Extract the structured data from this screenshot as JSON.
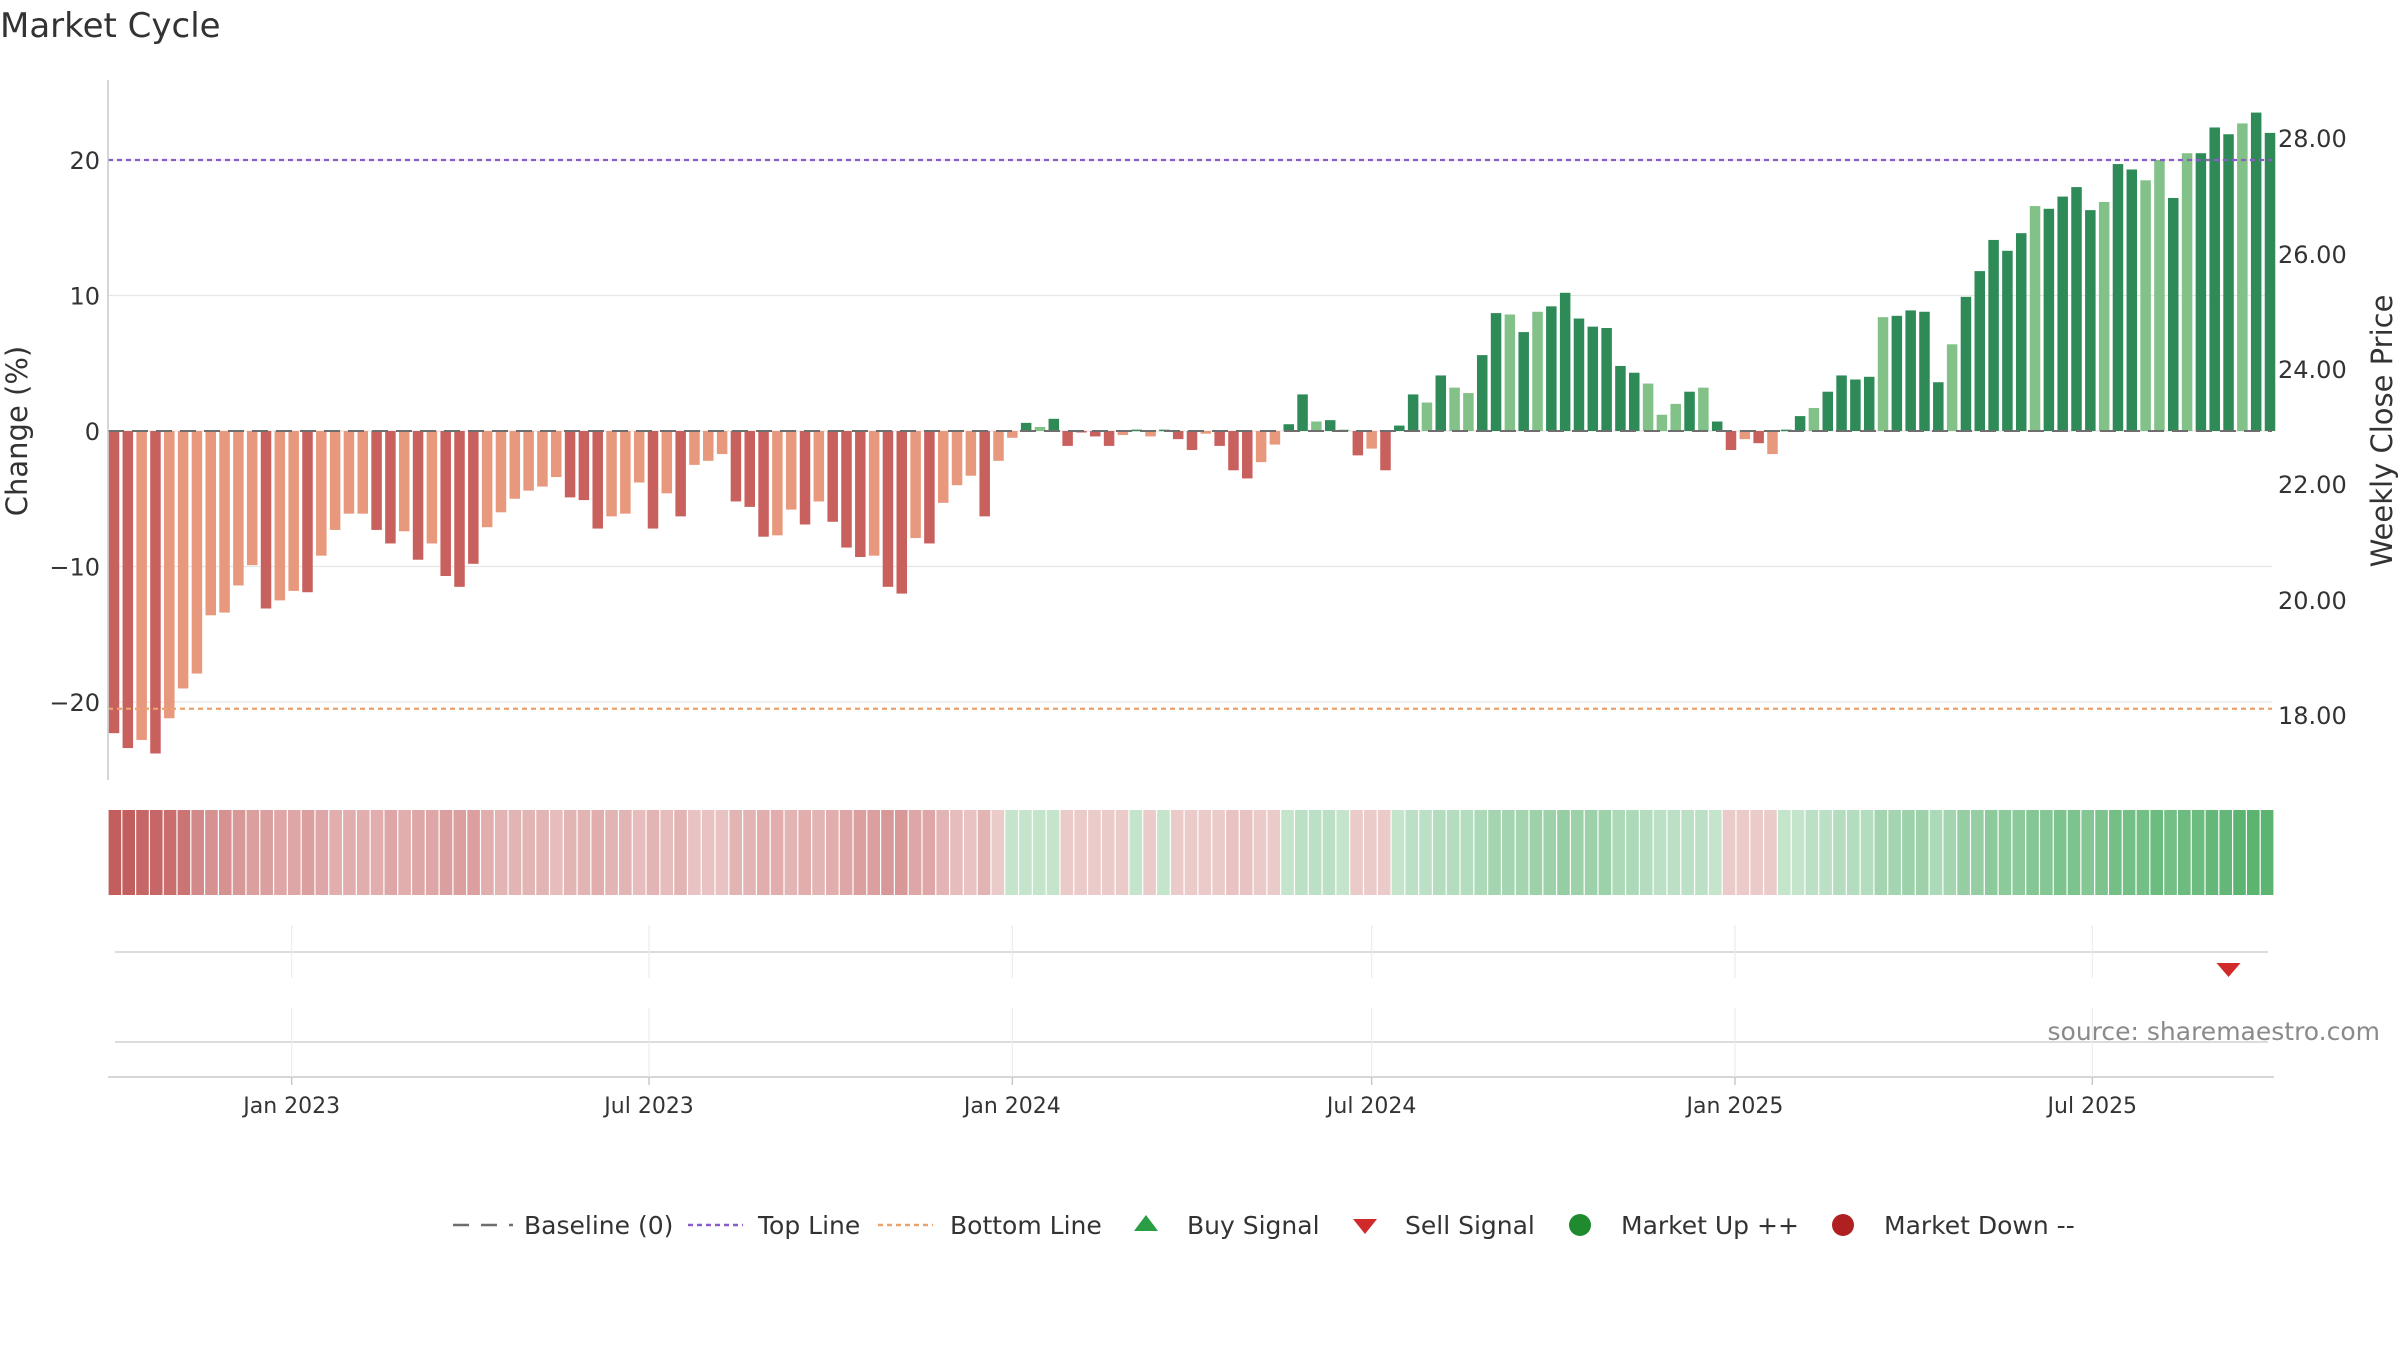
{
  "title": "Market Cycle",
  "source": "source: sharemaestro.com",
  "colors": {
    "strong_down": "#c8605d",
    "weak_down": "#e8987c",
    "strong_up": "#2e8a57",
    "weak_up": "#82c188",
    "top_line": "#8a5cc7",
    "bottom_line": "#e9a36f",
    "baseline": "#6e6e6e",
    "buy": "#2a9e45",
    "sell": "#d02a2a",
    "market_up": "#1f8a2e",
    "market_down": "#b02020"
  },
  "chart_data": {
    "type": "bar",
    "x_start": "2022-10-03",
    "x_step_days": 7,
    "y_left": {
      "label": "Change (%)",
      "ylim": [
        -26,
        26
      ],
      "ticks": [
        -20,
        -10,
        0,
        10,
        20
      ]
    },
    "y_right": {
      "label": "Weekly Close Price",
      "ticks": [
        "18.00",
        "20.00",
        "22.00",
        "24.00",
        "26.00",
        "28.00"
      ]
    },
    "x_ticks": [
      "Jan 2023",
      "Jul 2023",
      "Jan 2024",
      "Jul 2024",
      "Jan 2025",
      "Jul 2025"
    ],
    "x_tick_dates": [
      "2023-01-01",
      "2023-07-01",
      "2024-01-01",
      "2024-07-01",
      "2025-01-01",
      "2025-07-01"
    ],
    "top_line": 20.0,
    "bottom_line": -20.5,
    "baseline": 0,
    "values": [
      -22.3,
      -23.4,
      -22.8,
      -23.8,
      -21.2,
      -19.0,
      -17.9,
      -13.6,
      -13.4,
      -11.4,
      -9.9,
      -13.1,
      -12.5,
      -11.8,
      -11.9,
      -9.2,
      -7.3,
      -6.1,
      -6.1,
      -7.3,
      -8.3,
      -7.4,
      -9.5,
      -8.3,
      -10.7,
      -11.5,
      -9.8,
      -7.1,
      -6.0,
      -5.0,
      -4.4,
      -4.1,
      -3.4,
      -4.9,
      -5.1,
      -7.2,
      -6.3,
      -6.1,
      -3.8,
      -7.2,
      -4.6,
      -6.3,
      -2.5,
      -2.2,
      -1.7,
      -5.2,
      -5.6,
      -7.8,
      -7.7,
      -5.8,
      -6.9,
      -5.2,
      -6.7,
      -8.6,
      -9.3,
      -9.2,
      -11.5,
      -12.0,
      -7.9,
      -8.3,
      -5.3,
      -4.0,
      -3.3,
      -6.3,
      -2.2,
      -0.5,
      0.6,
      0.3,
      0.9,
      -1.1,
      -0.1,
      -0.4,
      -1.1,
      -0.3,
      0.1,
      -0.4,
      0.1,
      -0.6,
      -1.4,
      -0.2,
      -1.1,
      -2.9,
      -3.5,
      -2.3,
      -1.0,
      0.5,
      2.7,
      0.7,
      0.8,
      0.1,
      -1.8,
      -1.3,
      -2.9,
      0.4,
      2.7,
      2.1,
      4.1,
      3.2,
      2.8,
      5.6,
      8.7,
      8.6,
      7.3,
      8.8,
      9.2,
      10.2,
      8.3,
      7.7,
      7.6,
      4.8,
      4.3,
      3.5,
      1.2,
      2.0,
      2.9,
      3.2,
      0.7,
      -1.4,
      -0.6,
      -0.9,
      -1.7,
      0.1,
      1.1,
      1.7,
      2.9,
      4.1,
      3.8,
      4.0,
      8.4,
      8.5,
      8.9,
      8.8,
      3.6,
      6.4,
      9.9,
      11.8,
      14.1,
      13.3,
      14.6,
      16.6,
      16.4,
      17.3,
      18.0,
      16.3,
      16.9,
      19.7,
      19.3,
      18.5,
      20.0,
      17.2,
      20.5,
      20.5,
      22.4,
      21.9,
      22.7,
      23.5,
      22.0
    ],
    "weak": [
      0,
      0,
      1,
      0,
      1,
      1,
      1,
      1,
      1,
      1,
      1,
      0,
      1,
      1,
      0,
      1,
      1,
      1,
      1,
      0,
      0,
      1,
      0,
      1,
      0,
      0,
      0,
      1,
      1,
      1,
      1,
      1,
      1,
      0,
      0,
      0,
      1,
      1,
      1,
      0,
      1,
      0,
      1,
      1,
      1,
      0,
      0,
      0,
      1,
      1,
      0,
      1,
      0,
      0,
      0,
      1,
      0,
      0,
      1,
      0,
      1,
      1,
      1,
      0,
      1,
      1,
      0,
      1,
      0,
      0,
      0,
      0,
      0,
      1,
      0,
      1,
      0,
      0,
      0,
      1,
      0,
      0,
      0,
      1,
      1,
      0,
      0,
      1,
      0,
      1,
      0,
      1,
      0,
      0,
      0,
      1,
      0,
      1,
      1,
      0,
      0,
      1,
      0,
      1,
      0,
      0,
      0,
      0,
      0,
      0,
      0,
      1,
      1,
      1,
      0,
      1,
      0,
      0,
      1,
      0,
      1,
      0,
      0,
      1,
      0,
      0,
      0,
      0,
      1,
      0,
      0,
      0,
      0,
      1,
      0,
      0,
      0,
      0,
      0,
      1,
      0,
      0,
      0,
      0,
      1,
      0,
      0,
      1,
      1,
      0,
      1,
      0,
      0,
      0,
      1,
      0,
      0,
      0,
      1
    ],
    "heat": [
      -0.9,
      -0.9,
      -0.85,
      -0.85,
      -0.8,
      -0.75,
      -0.6,
      -0.55,
      -0.55,
      -0.5,
      -0.45,
      -0.45,
      -0.4,
      -0.4,
      -0.45,
      -0.4,
      -0.35,
      -0.35,
      -0.35,
      -0.35,
      -0.4,
      -0.35,
      -0.4,
      -0.4,
      -0.45,
      -0.45,
      -0.45,
      -0.35,
      -0.3,
      -0.3,
      -0.3,
      -0.3,
      -0.25,
      -0.3,
      -0.3,
      -0.35,
      -0.3,
      -0.3,
      -0.25,
      -0.3,
      -0.25,
      -0.3,
      -0.2,
      -0.2,
      -0.2,
      -0.3,
      -0.3,
      -0.35,
      -0.35,
      -0.3,
      -0.35,
      -0.3,
      -0.35,
      -0.4,
      -0.45,
      -0.45,
      -0.5,
      -0.5,
      -0.4,
      -0.4,
      -0.3,
      -0.25,
      -0.2,
      -0.3,
      -0.15,
      0.15,
      0.15,
      0.15,
      0.15,
      -0.15,
      -0.15,
      -0.15,
      -0.15,
      -0.15,
      0.15,
      -0.15,
      0.15,
      -0.15,
      -0.15,
      -0.15,
      -0.15,
      -0.2,
      -0.2,
      -0.15,
      -0.15,
      0.15,
      0.2,
      0.2,
      0.2,
      0.15,
      -0.15,
      -0.15,
      -0.15,
      0.15,
      0.2,
      0.2,
      0.25,
      0.25,
      0.25,
      0.3,
      0.35,
      0.35,
      0.35,
      0.4,
      0.4,
      0.45,
      0.4,
      0.4,
      0.4,
      0.3,
      0.3,
      0.25,
      0.2,
      0.2,
      0.2,
      0.2,
      0.15,
      -0.15,
      -0.15,
      -0.15,
      -0.15,
      0.15,
      0.15,
      0.2,
      0.2,
      0.25,
      0.25,
      0.25,
      0.35,
      0.35,
      0.4,
      0.4,
      0.3,
      0.35,
      0.45,
      0.45,
      0.5,
      0.5,
      0.5,
      0.55,
      0.55,
      0.6,
      0.6,
      0.55,
      0.6,
      0.65,
      0.65,
      0.65,
      0.7,
      0.65,
      0.7,
      0.7,
      0.75,
      0.75,
      0.8,
      0.8,
      0.8
    ],
    "signals": [
      {
        "type": "sell",
        "date": "2025-09-08"
      }
    ],
    "legend": [
      "Baseline (0)",
      "Top Line",
      "Bottom Line",
      "Buy Signal",
      "Sell Signal",
      "Market Up ++",
      "Market Down --"
    ]
  }
}
